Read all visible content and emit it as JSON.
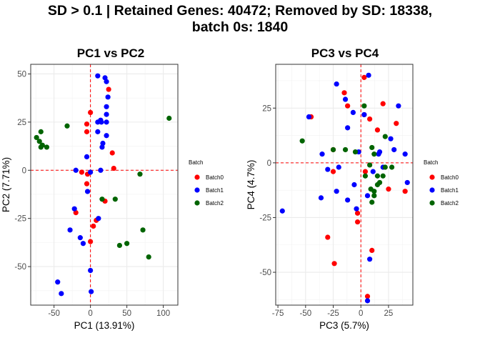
{
  "title_lines": [
    "SD > 0.1 | Retained Genes: 40472; Removed by SD: 18338,",
    "batch 0s: 1840"
  ],
  "colors": {
    "Batch0": "#ff0000",
    "Batch1": "#0000ff",
    "Batch2": "#006400",
    "refline": "#ff0000",
    "grid": "#ebebeb",
    "border": "#333333"
  },
  "chart_data": [
    {
      "type": "scatter",
      "title": "PC1 vs PC2",
      "xlabel": "PC1 (13.91%)",
      "ylabel": "PC2 (7.71%)",
      "xlim": [
        -82,
        120
      ],
      "ylim": [
        -70,
        55
      ],
      "xticks": [
        -50,
        0,
        50,
        100
      ],
      "yticks": [
        -50,
        -25,
        0,
        25,
        50
      ],
      "xtick_labels": [
        "-50",
        "0",
        "50",
        "100"
      ],
      "ytick_labels": [
        "-50",
        "-25",
        "0",
        "25",
        "50"
      ],
      "grid": true,
      "reference_lines": {
        "x": 0,
        "y": 0
      },
      "legend": {
        "title": "Batch",
        "entries": [
          "Batch0",
          "Batch1",
          "Batch2"
        ],
        "placement": "right"
      },
      "series": [
        {
          "name": "Batch0",
          "points": [
            [
              0,
              30
            ],
            [
              -5,
              24
            ],
            [
              -5,
              20
            ],
            [
              25,
              42
            ],
            [
              30,
              9
            ],
            [
              32,
              1
            ],
            [
              -12,
              -1
            ],
            [
              -4,
              -2
            ],
            [
              -5,
              -7
            ],
            [
              -20,
              -22
            ],
            [
              8,
              -26
            ],
            [
              4,
              -29
            ],
            [
              0,
              -37
            ],
            [
              20,
              -16
            ]
          ]
        },
        {
          "name": "Batch1",
          "points": [
            [
              10,
              49
            ],
            [
              20,
              48
            ],
            [
              22,
              46
            ],
            [
              24,
              38
            ],
            [
              22,
              33
            ],
            [
              22,
              29
            ],
            [
              10,
              25
            ],
            [
              14,
              26
            ],
            [
              15,
              25
            ],
            [
              22,
              25
            ],
            [
              22,
              18
            ],
            [
              17,
              14
            ],
            [
              16,
              12
            ],
            [
              10,
              20
            ],
            [
              -5,
              7
            ],
            [
              -20,
              0
            ],
            [
              0,
              -1
            ],
            [
              14,
              0
            ],
            [
              -4,
              -11
            ],
            [
              -22,
              -20
            ],
            [
              11,
              -25
            ],
            [
              -28,
              -31
            ],
            [
              -14,
              -35
            ],
            [
              -10,
              -38
            ],
            [
              0,
              -52
            ],
            [
              -45,
              -58
            ],
            [
              -40,
              -64
            ],
            [
              1,
              -63
            ]
          ]
        },
        {
          "name": "Batch2",
          "points": [
            [
              -32,
              23
            ],
            [
              -74,
              17
            ],
            [
              -68,
              20
            ],
            [
              -70,
              15
            ],
            [
              -66,
              13
            ],
            [
              -60,
              12
            ],
            [
              -68,
              12
            ],
            [
              108,
              27
            ],
            [
              68,
              -2
            ],
            [
              16,
              -15
            ],
            [
              34,
              -15
            ],
            [
              72,
              -31
            ],
            [
              50,
              -38
            ],
            [
              40,
              -39
            ],
            [
              80,
              -45
            ]
          ]
        }
      ]
    },
    {
      "type": "scatter",
      "title": "PC3 vs PC4",
      "xlabel": "PC3 (5.7%)",
      "ylabel": "PC4 (4.7%)",
      "xlim": [
        -77,
        47
      ],
      "ylim": [
        -65,
        45
      ],
      "xticks": [
        -75,
        -50,
        -25,
        0,
        25
      ],
      "yticks": [
        -50,
        -25,
        0,
        25
      ],
      "xtick_labels": [
        "-75",
        "-50",
        "-25",
        "0",
        "25"
      ],
      "ytick_labels": [
        "-50",
        "-25",
        "0",
        "25"
      ],
      "grid": true,
      "reference_lines": {
        "x": 0,
        "y": 0
      },
      "legend": {
        "title": "Batch",
        "entries": [
          "Batch0",
          "Batch1",
          "Batch2"
        ],
        "placement": "right"
      },
      "series": [
        {
          "name": "Batch0",
          "points": [
            [
              3,
              39
            ],
            [
              -15,
              32
            ],
            [
              -12,
              26
            ],
            [
              -45,
              21
            ],
            [
              3,
              22
            ],
            [
              20,
              27
            ],
            [
              8,
              20
            ],
            [
              32,
              18
            ],
            [
              15,
              15
            ],
            [
              -25,
              6
            ],
            [
              -25,
              -4
            ],
            [
              4,
              -4
            ],
            [
              25,
              -12
            ],
            [
              40,
              -13
            ],
            [
              -3,
              -23
            ],
            [
              -24,
              -46
            ],
            [
              -30,
              -34
            ],
            [
              -3,
              -27
            ],
            [
              10,
              -40
            ],
            [
              6,
              -61
            ]
          ]
        },
        {
          "name": "Batch1",
          "points": [
            [
              7,
              40
            ],
            [
              -22,
              36
            ],
            [
              -14,
              29
            ],
            [
              -47,
              21
            ],
            [
              -7,
              23
            ],
            [
              3,
              22
            ],
            [
              -12,
              16
            ],
            [
              34,
              26
            ],
            [
              27,
              11
            ],
            [
              30,
              6
            ],
            [
              17,
              5
            ],
            [
              40,
              4
            ],
            [
              -35,
              4
            ],
            [
              -2,
              5
            ],
            [
              16,
              4
            ],
            [
              11,
              -4
            ],
            [
              -20,
              -2
            ],
            [
              -6,
              -10
            ],
            [
              20,
              -2
            ],
            [
              6,
              -15
            ],
            [
              -12,
              -17
            ],
            [
              -30,
              -3
            ],
            [
              42,
              -9
            ],
            [
              -22,
              -13
            ],
            [
              -4,
              -21
            ],
            [
              -36,
              -16
            ],
            [
              -71,
              -22
            ],
            [
              8,
              -44
            ],
            [
              6,
              -63
            ]
          ]
        },
        {
          "name": "Batch2",
          "points": [
            [
              3,
              26
            ],
            [
              -53,
              10
            ],
            [
              -25,
              6
            ],
            [
              -14,
              6
            ],
            [
              -5,
              5
            ],
            [
              10,
              7
            ],
            [
              12,
              4
            ],
            [
              15,
              -6
            ],
            [
              17,
              -9
            ],
            [
              20,
              -6
            ],
            [
              22,
              -2
            ],
            [
              8,
              -1
            ],
            [
              4,
              -6
            ],
            [
              9,
              -12
            ],
            [
              12,
              -15
            ],
            [
              15,
              -10
            ],
            [
              10,
              -18
            ],
            [
              28,
              -2
            ],
            [
              12,
              -13
            ],
            [
              22,
              12
            ]
          ]
        }
      ]
    }
  ]
}
